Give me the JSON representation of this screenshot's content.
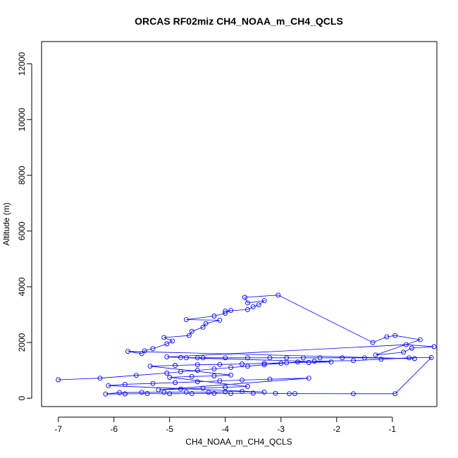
{
  "chart_data": {
    "type": "scatter",
    "title": "ORCAS RF02miz CH4_NOAA_m_CH4_QCLS",
    "xlabel": "CH4_NOAA_m_CH4_QCLS",
    "ylabel": "Altitude (m)",
    "xlim": [
      -7.3,
      -0.2
    ],
    "ylim": [
      -300,
      12800
    ],
    "x_ticks": [
      -7,
      -6,
      -5,
      -4,
      -3,
      -2,
      -1
    ],
    "y_ticks": [
      0,
      2000,
      4000,
      6000,
      8000,
      10000,
      12000
    ],
    "x_tick_labels": [
      "-7",
      "-6",
      "-5",
      "-4",
      "-3",
      "-2",
      "-1"
    ],
    "y_tick_labels": [
      "0",
      "2000",
      "4000",
      "6000",
      "8000",
      "10000",
      "12000"
    ],
    "grid": false,
    "marker": "open-circle",
    "connected": true,
    "series_color": "#0000ff",
    "series": [
      {
        "values": [
          [
            -7.0,
            660
          ],
          [
            -6.25,
            720
          ],
          [
            -5.6,
            820
          ],
          [
            -5.05,
            900
          ],
          [
            -4.8,
            950
          ],
          [
            -4.5,
            1000
          ],
          [
            -4.2,
            1050
          ],
          [
            -3.9,
            1100
          ],
          [
            -3.6,
            1150
          ],
          [
            -3.3,
            1200
          ],
          [
            -3.0,
            1250
          ],
          [
            -2.7,
            1300
          ],
          [
            -2.4,
            1330
          ],
          [
            -1.7,
            1350
          ],
          [
            -1.2,
            1400
          ],
          [
            -0.7,
            1450
          ],
          [
            -0.3,
            1460
          ],
          [
            -0.95,
            160
          ],
          [
            -1.7,
            160
          ],
          [
            -2.75,
            165
          ],
          [
            -2.85,
            160
          ],
          [
            -3.1,
            175
          ],
          [
            -3.5,
            180
          ],
          [
            -3.9,
            170
          ],
          [
            -4.2,
            175
          ],
          [
            -4.6,
            165
          ],
          [
            -5.0,
            160
          ],
          [
            -5.4,
            165
          ],
          [
            -5.8,
            155
          ],
          [
            -6.15,
            150
          ],
          [
            -5.9,
            200
          ],
          [
            -5.5,
            210
          ],
          [
            -5.1,
            215
          ],
          [
            -4.7,
            220
          ],
          [
            -4.3,
            210
          ],
          [
            -4.0,
            230
          ],
          [
            -3.7,
            240
          ],
          [
            -3.3,
            220
          ],
          [
            -6.1,
            450
          ],
          [
            -5.8,
            500
          ],
          [
            -5.3,
            530
          ],
          [
            -4.9,
            560
          ],
          [
            -4.5,
            590
          ],
          [
            -4.1,
            620
          ],
          [
            -3.7,
            650
          ],
          [
            -3.2,
            680
          ],
          [
            -2.5,
            720
          ],
          [
            -5.2,
            300
          ],
          [
            -4.8,
            330
          ],
          [
            -4.4,
            360
          ],
          [
            -4.0,
            390
          ],
          [
            -3.6,
            420
          ],
          [
            -5.0,
            750
          ],
          [
            -4.6,
            780
          ],
          [
            -4.2,
            800
          ],
          [
            -3.9,
            830
          ],
          [
            -5.35,
            1150
          ],
          [
            -4.9,
            1180
          ],
          [
            -4.5,
            1200
          ],
          [
            -4.1,
            1210
          ],
          [
            -3.7,
            1230
          ],
          [
            -3.3,
            1250
          ],
          [
            -2.9,
            1270
          ],
          [
            -2.5,
            1280
          ],
          [
            -2.1,
            1300
          ],
          [
            -4.7,
            1450
          ],
          [
            -4.4,
            1450
          ],
          [
            -4.0,
            1450
          ],
          [
            -3.6,
            1450
          ],
          [
            -3.2,
            1450
          ],
          [
            -2.9,
            1450
          ],
          [
            -2.6,
            1450
          ],
          [
            -2.3,
            1450
          ],
          [
            -1.9,
            1450
          ],
          [
            -1.5,
            1450
          ],
          [
            -0.6,
            1420
          ],
          [
            -5.75,
            1680
          ],
          [
            -5.5,
            1600
          ],
          [
            -5.45,
            1700
          ],
          [
            -5.3,
            1780
          ],
          [
            -5.05,
            1950
          ],
          [
            -4.95,
            2050
          ],
          [
            -5.1,
            2180
          ],
          [
            -4.65,
            2250
          ],
          [
            -4.6,
            2400
          ],
          [
            -4.4,
            2550
          ],
          [
            -4.35,
            2680
          ],
          [
            -4.1,
            2800
          ],
          [
            -4.7,
            2820
          ],
          [
            -4.2,
            2950
          ],
          [
            -4.0,
            3050
          ],
          [
            -3.9,
            3150
          ],
          [
            -4.0,
            3130
          ],
          [
            -3.6,
            3180
          ],
          [
            -3.5,
            3280
          ],
          [
            -3.4,
            3350
          ],
          [
            -3.3,
            3500
          ],
          [
            -3.6,
            3420
          ],
          [
            -3.65,
            3620
          ],
          [
            -3.05,
            3700
          ],
          [
            -1.35,
            2000
          ],
          [
            -1.1,
            2200
          ],
          [
            -0.95,
            2250
          ],
          [
            -0.5,
            2100
          ],
          [
            -1.3,
            1550
          ],
          [
            -0.8,
            1650
          ],
          [
            -0.65,
            1800
          ],
          [
            -0.25,
            1850
          ],
          [
            -0.75,
            1920
          ],
          [
            -5.05,
            1480
          ],
          [
            -4.8,
            1460
          ],
          [
            -4.5,
            1450
          ]
        ]
      }
    ]
  }
}
